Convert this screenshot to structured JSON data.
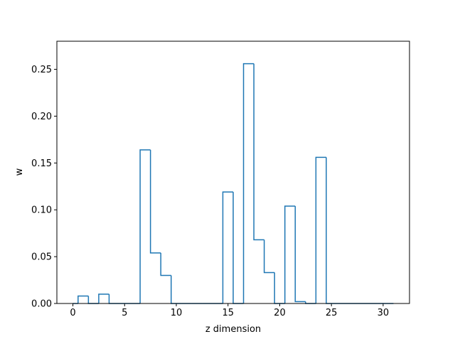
{
  "chart_data": {
    "type": "bar",
    "subtype": "step-histogram",
    "title": "",
    "xlabel": "z dimension",
    "ylabel": "w",
    "xlim": [
      -1.55,
      32.55
    ],
    "ylim": [
      0,
      0.28
    ],
    "xticks": [
      0,
      5,
      10,
      15,
      20,
      25,
      30
    ],
    "yticks": [
      "0.00",
      "0.05",
      "0.10",
      "0.15",
      "0.20",
      "0.25"
    ],
    "grid": false,
    "line_color": "#1f77b4",
    "bin_edges": [
      0,
      0.5,
      1.5,
      2.5,
      3.5,
      4.5,
      5.5,
      6.5,
      7.5,
      8.5,
      9.5,
      10.5,
      11.5,
      12.5,
      13.5,
      14.5,
      15.5,
      16.5,
      17.5,
      18.5,
      19.5,
      20.5,
      21.5,
      22.5,
      23.5,
      24.5,
      25.5,
      26.5,
      27.5,
      28.5,
      29.5,
      30.5,
      31
    ],
    "values": [
      0,
      0.008,
      0,
      0.01,
      0,
      0,
      0,
      0.164,
      0.054,
      0.03,
      0,
      0,
      0,
      0,
      0,
      0.119,
      0,
      0.256,
      0.068,
      0.033,
      0,
      0.104,
      0.002,
      0,
      0.156,
      0,
      0,
      0,
      0,
      0,
      0,
      0
    ]
  }
}
